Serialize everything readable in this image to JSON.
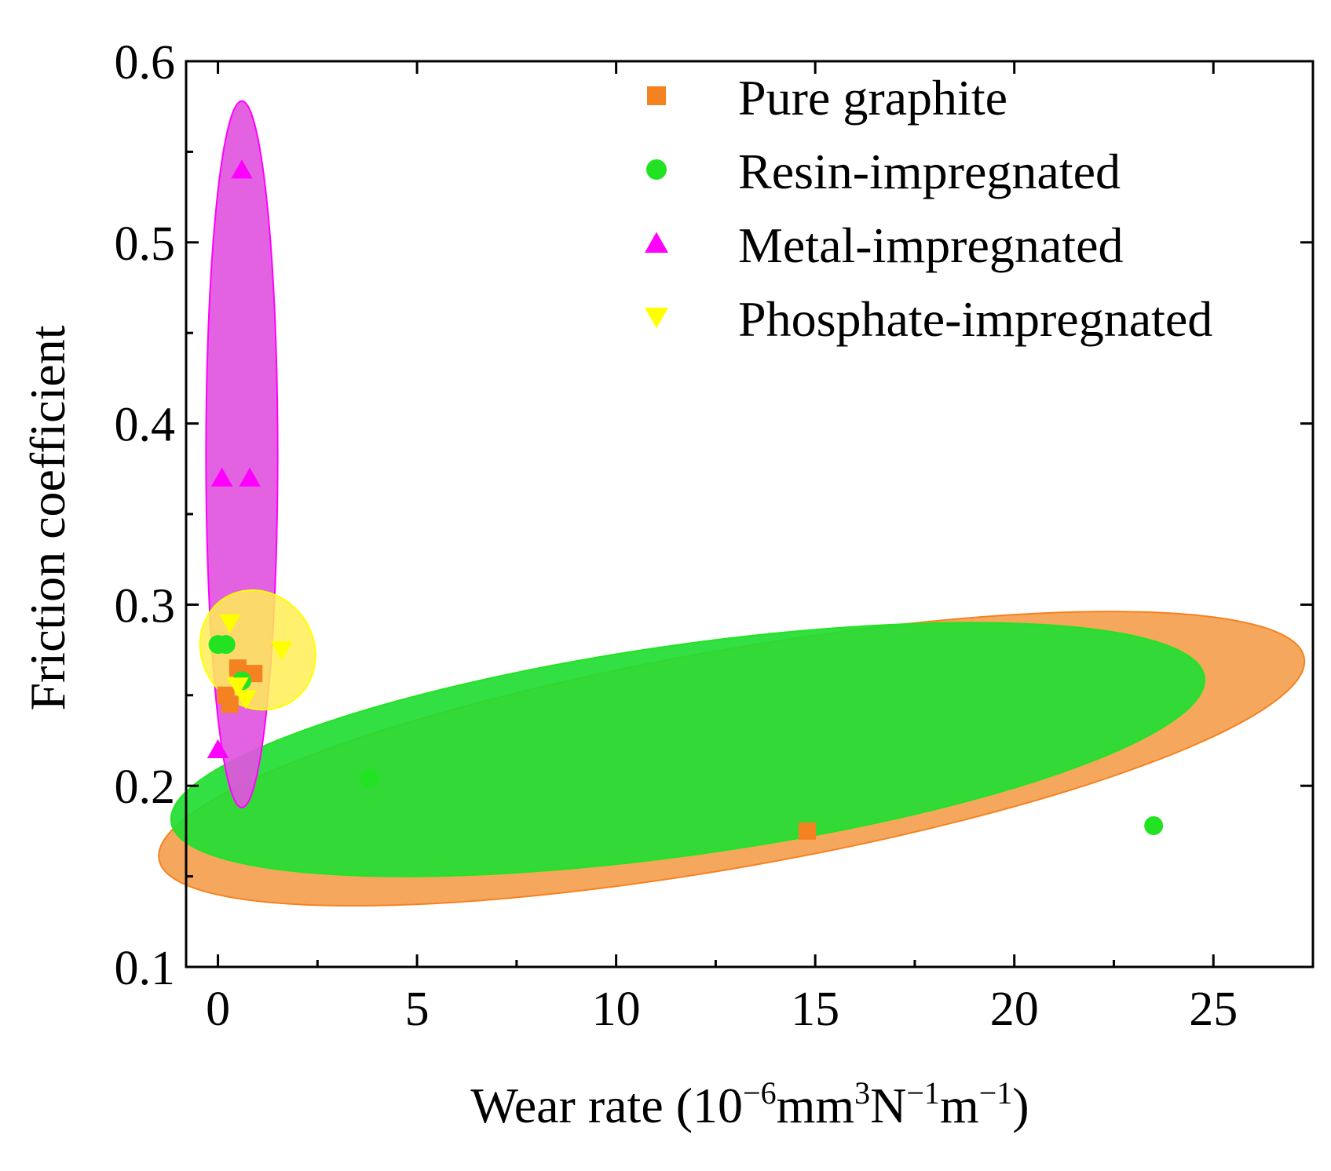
{
  "chart_data": {
    "type": "scatter",
    "xlabel_prefix": "Wear rate (10",
    "xlabel_exp1": "−6",
    "xlabel_mid1": "mm",
    "xlabel_exp2": "3",
    "xlabel_mid2": "N",
    "xlabel_exp3": "−1",
    "xlabel_mid3": "m",
    "xlabel_exp4": "−1",
    "xlabel_suffix": ")",
    "ylabel": "Friction coefficient",
    "xlim": [
      -0.8,
      27.5
    ],
    "ylim": [
      0.1,
      0.6
    ],
    "xticks": [
      0,
      5,
      10,
      15,
      20,
      25
    ],
    "yticks": [
      0.1,
      0.2,
      0.3,
      0.4,
      0.5,
      0.6
    ],
    "xtick_labels": [
      "0",
      "5",
      "10",
      "15",
      "20",
      "25"
    ],
    "ytick_labels": [
      "0.1",
      "0.2",
      "0.3",
      "0.4",
      "0.5",
      "0.6"
    ],
    "legend_position": "top-right",
    "series": [
      {
        "name": "Pure graphite",
        "marker": "square",
        "color": "#f58220",
        "points": [
          [
            0.2,
            0.25
          ],
          [
            0.3,
            0.245
          ],
          [
            0.5,
            0.265
          ],
          [
            0.9,
            0.262
          ],
          [
            14.8,
            0.175
          ]
        ],
        "ellipse": {
          "cx": 12.9,
          "cy": 0.215,
          "rx": 14.6,
          "ry": 0.06,
          "angle_deg": -10,
          "fill": "#f5a050"
        }
      },
      {
        "name": "Resin-impregnated",
        "marker": "circle",
        "color": "#22e322",
        "points": [
          [
            0.0,
            0.278
          ],
          [
            0.2,
            0.278
          ],
          [
            0.6,
            0.258
          ],
          [
            3.8,
            0.204
          ],
          [
            23.5,
            0.178
          ]
        ],
        "ellipse": {
          "cx": 11.8,
          "cy": 0.22,
          "rx": 13.1,
          "ry": 0.058,
          "angle_deg": -8,
          "fill": "#22dd33"
        }
      },
      {
        "name": "Metal-impregnated",
        "marker": "triangle-up",
        "color": "#ff00ff",
        "points": [
          [
            0.0,
            0.22
          ],
          [
            0.1,
            0.37
          ],
          [
            0.6,
            0.54
          ],
          [
            0.8,
            0.37
          ]
        ],
        "ellipse": {
          "cx": 0.6,
          "cy": 0.383,
          "rx": 0.9,
          "ry": 0.195,
          "angle_deg": 0,
          "fill": "#e055e0"
        }
      },
      {
        "name": "Phosphate-impregnated",
        "marker": "triangle-down",
        "color": "#ffff00",
        "points": [
          [
            0.3,
            0.29
          ],
          [
            0.5,
            0.255
          ],
          [
            0.7,
            0.248
          ],
          [
            1.6,
            0.275
          ]
        ],
        "ellipse": {
          "cx": 1.0,
          "cy": 0.275,
          "rx": 1.4,
          "ry": 0.034,
          "angle_deg": 55,
          "fill": "#ffee55"
        }
      }
    ]
  }
}
